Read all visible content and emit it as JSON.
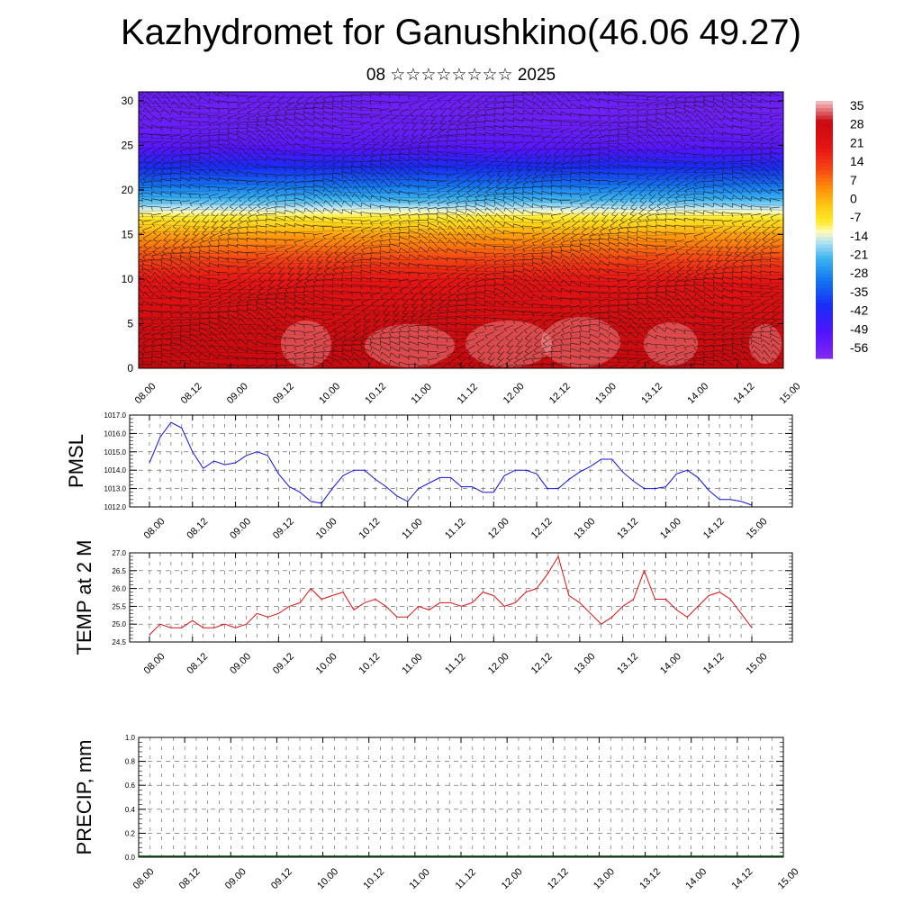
{
  "title": "Kazhydromet for Ganushkino(46.06 49.27)",
  "subtitle": "08 ☆☆☆☆☆☆☆☆ 2025",
  "colors": {
    "pmsl_line": "#1010e0",
    "temp_line": "#e01010",
    "precip_baseline": "#0a4a0a"
  },
  "chart_data": [
    {
      "type": "heatmap",
      "name_key": "cross_section",
      "x_ticks": [
        "08.00",
        "08.12",
        "09.00",
        "09.12",
        "10.00",
        "10.12",
        "11.00",
        "11.12",
        "12.00",
        "12.12",
        "13.00",
        "13.12",
        "14.00",
        "14.12",
        "15.00"
      ],
      "y_ticks": [
        "0",
        "5",
        "10",
        "15",
        "20",
        "25",
        "30"
      ],
      "ylim": [
        0,
        31
      ],
      "colorbar_labels": [
        "35",
        "28",
        "21",
        "14",
        "7",
        "0",
        "-7",
        "-14",
        "-21",
        "-28",
        "-35",
        "-42",
        "-49",
        "-56"
      ],
      "colorbar_range": [
        -60,
        38
      ],
      "field_profile": {
        "z": [
          0,
          3,
          6,
          9,
          11,
          13,
          15,
          17,
          19,
          21,
          23,
          25,
          27,
          29,
          31
        ],
        "value": [
          30,
          28,
          26,
          22,
          17,
          10,
          3,
          -8,
          -22,
          -33,
          -42,
          -52,
          -55,
          -56,
          -55
        ]
      },
      "overlay": "wind barbs"
    },
    {
      "type": "line",
      "ylabel": "PMSL",
      "ylim": [
        1012.0,
        1017.0
      ],
      "y_ticks": [
        "1012.0",
        "1013.0",
        "1014.0",
        "1015.0",
        "1016.0",
        "1017.0"
      ],
      "x_ticks": [
        "08.00",
        "08.12",
        "09.00",
        "09.12",
        "10.00",
        "10.12",
        "11.00",
        "11.12",
        "12.00",
        "12.12",
        "13.00",
        "13.12",
        "14.00",
        "14.12",
        "15.00"
      ],
      "x_step_hours": 3,
      "values": [
        1014.4,
        1015.8,
        1016.6,
        1016.3,
        1015.0,
        1014.1,
        1014.5,
        1014.3,
        1014.4,
        1014.8,
        1015.0,
        1014.8,
        1013.8,
        1013.1,
        1012.8,
        1012.3,
        1012.2,
        1013.0,
        1013.7,
        1014.0,
        1014.0,
        1013.5,
        1013.1,
        1012.6,
        1012.3,
        1013.0,
        1013.3,
        1013.6,
        1013.6,
        1013.1,
        1013.1,
        1012.8,
        1012.8,
        1013.7,
        1014.0,
        1014.0,
        1013.8,
        1013.0,
        1013.0,
        1013.5,
        1013.9,
        1014.2,
        1014.6,
        1014.6,
        1013.9,
        1013.4,
        1013.0,
        1013.0,
        1013.1,
        1013.8,
        1014.0,
        1013.6,
        1012.9,
        1012.4,
        1012.4,
        1012.3,
        1012.1
      ]
    },
    {
      "type": "line",
      "ylabel": "TEMP at 2 M",
      "ylim": [
        24.5,
        27.0
      ],
      "y_ticks": [
        "24.5",
        "25.0",
        "25.5",
        "26.0",
        "26.5",
        "27.0"
      ],
      "x_ticks": [
        "08.00",
        "08.12",
        "09.00",
        "09.12",
        "10.00",
        "10.12",
        "11.00",
        "11.12",
        "12.00",
        "12.12",
        "13.00",
        "13.12",
        "14.00",
        "14.12",
        "15.00"
      ],
      "x_step_hours": 3,
      "values": [
        24.7,
        25.0,
        24.9,
        24.9,
        25.1,
        24.9,
        24.9,
        25.0,
        24.9,
        25.0,
        25.3,
        25.2,
        25.3,
        25.5,
        25.6,
        26.0,
        25.7,
        25.8,
        25.9,
        25.4,
        25.6,
        25.7,
        25.5,
        25.2,
        25.2,
        25.5,
        25.4,
        25.6,
        25.6,
        25.5,
        25.6,
        25.9,
        25.8,
        25.5,
        25.6,
        25.9,
        26.0,
        26.4,
        26.9,
        25.8,
        25.6,
        25.3,
        25.0,
        25.2,
        25.5,
        25.7,
        26.5,
        25.7,
        25.7,
        25.4,
        25.2,
        25.5,
        25.8,
        25.9,
        25.7,
        25.3,
        24.9
      ]
    },
    {
      "type": "bar",
      "ylabel": "PRECIP, mm",
      "ylim": [
        0.0,
        1.0
      ],
      "y_ticks": [
        "0.0",
        "0.2",
        "0.4",
        "0.6",
        "0.8",
        "1.0"
      ],
      "x_ticks": [
        "08.00",
        "08.12",
        "09.00",
        "09.12",
        "10.00",
        "10.12",
        "11.00",
        "11.12",
        "12.00",
        "12.12",
        "13.00",
        "13.12",
        "14.00",
        "14.12",
        "15.00"
      ],
      "values": [
        0,
        0,
        0,
        0,
        0,
        0,
        0,
        0,
        0,
        0,
        0,
        0,
        0,
        0,
        0
      ]
    }
  ]
}
